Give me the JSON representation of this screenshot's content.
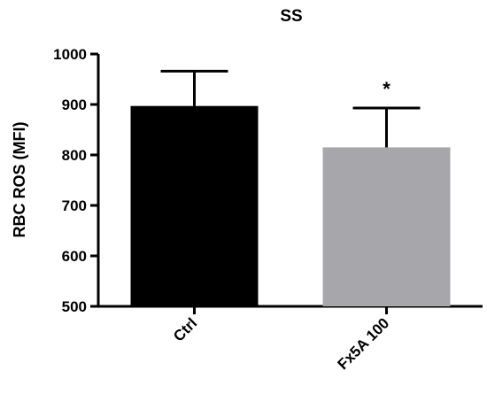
{
  "chart_data": {
    "type": "bar",
    "title": "SS",
    "xlabel": "",
    "ylabel": "RBC ROS (MFI)",
    "ylim": [
      500,
      1000
    ],
    "yticks": [
      500,
      600,
      700,
      800,
      900,
      1000
    ],
    "categories": [
      "Ctrl",
      "Fx5A 100"
    ],
    "values": [
      897,
      815
    ],
    "errors": [
      69,
      78
    ],
    "significance": [
      "",
      "*"
    ],
    "colors": [
      "#000000",
      "#a6a6ab"
    ],
    "grid": false,
    "legend": "none"
  }
}
